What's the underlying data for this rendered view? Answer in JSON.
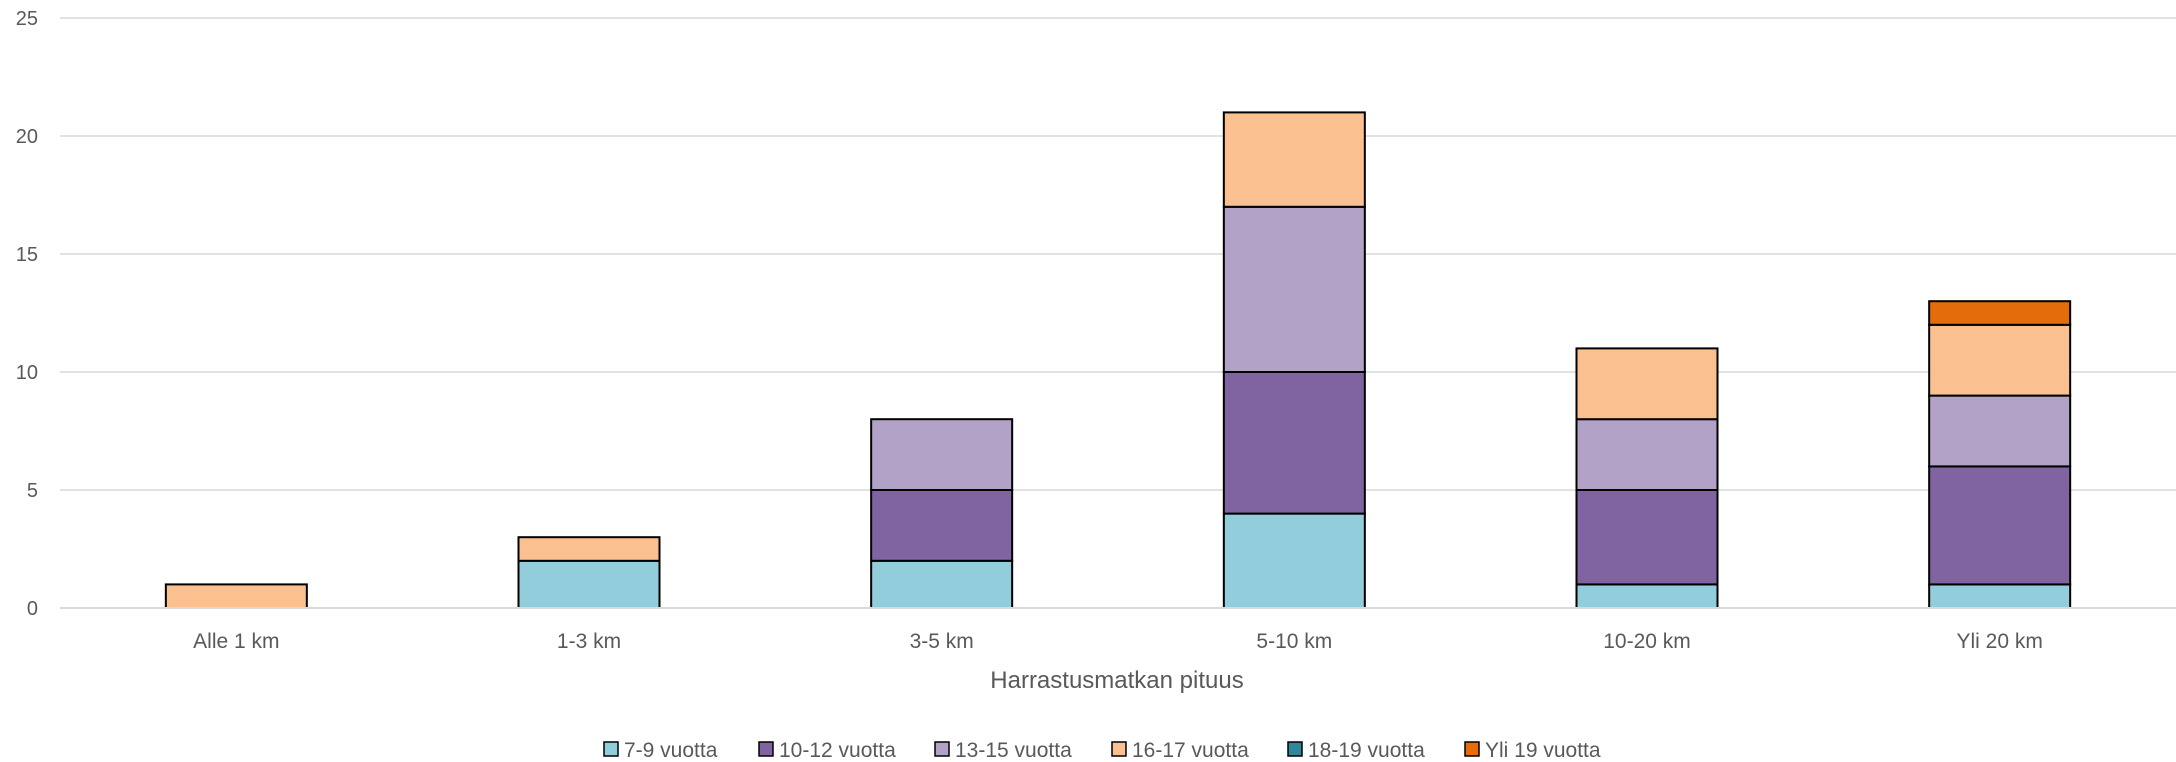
{
  "chart_data": {
    "type": "bar",
    "stacked": true,
    "title": "",
    "xlabel": "Harrastusmatkan pituus",
    "ylabel": "",
    "ylim": [
      0,
      25
    ],
    "yticks": [
      0,
      5,
      10,
      15,
      20,
      25
    ],
    "grid": true,
    "legend_position": "bottom",
    "categories": [
      "Alle 1 km",
      "1-3 km",
      "3-5 km",
      "5-10 km",
      "10-20 km",
      "Yli 20 km"
    ],
    "series": [
      {
        "name": "7-9 vuotta",
        "color": "#92cddc",
        "values": [
          0,
          2,
          2,
          4,
          1,
          1
        ]
      },
      {
        "name": "10-12 vuotta",
        "color": "#8064a2",
        "values": [
          0,
          0,
          3,
          6,
          4,
          5
        ]
      },
      {
        "name": "13-15 vuotta",
        "color": "#b2a2c7",
        "values": [
          0,
          0,
          3,
          7,
          3,
          3
        ]
      },
      {
        "name": "16-17 vuotta",
        "color": "#fac090",
        "values": [
          1,
          1,
          0,
          4,
          3,
          3
        ]
      },
      {
        "name": "18-19 vuotta",
        "color": "#31859c",
        "values": [
          0,
          0,
          0,
          0,
          0,
          0
        ]
      },
      {
        "name": "Yli 19 vuotta",
        "color": "#e46c0a",
        "values": [
          0,
          0,
          0,
          0,
          0,
          1
        ]
      }
    ]
  }
}
